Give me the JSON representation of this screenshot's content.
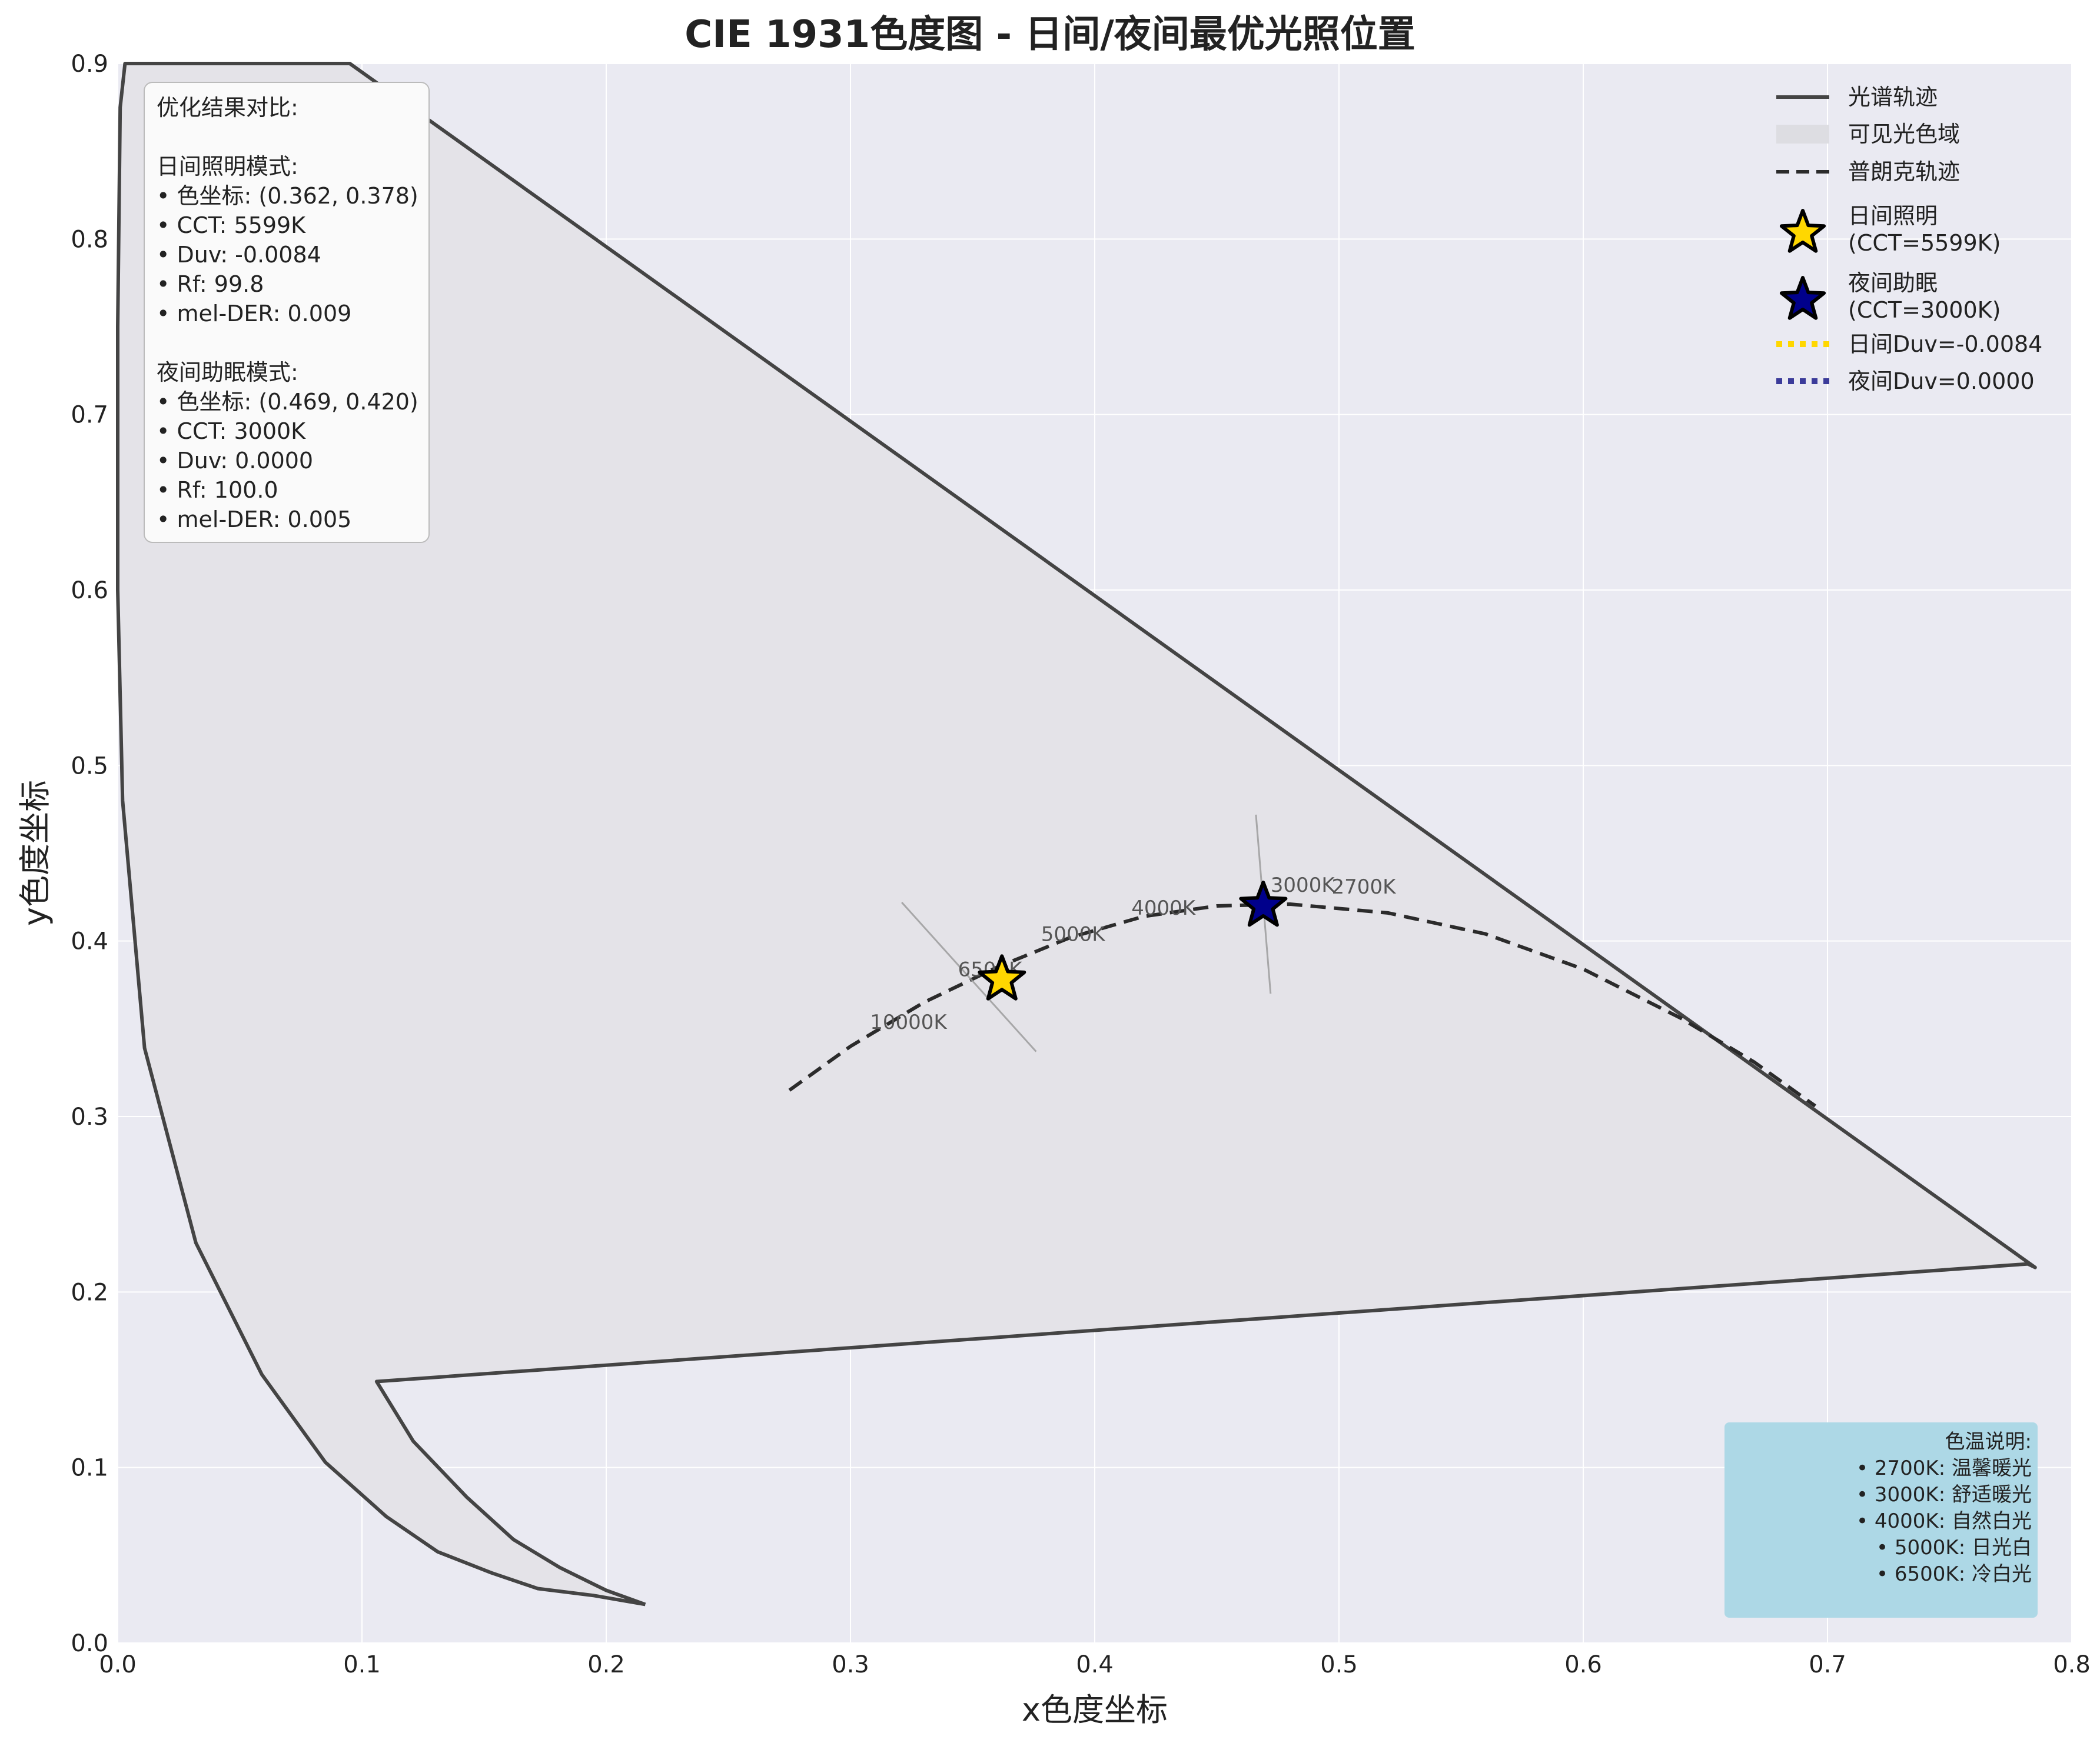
{
  "chart_data": {
    "type": "line",
    "title": "CIE 1931色度图 - 日间/夜间最优光照位置",
    "xlabel": "x色度坐标",
    "ylabel": "y色度坐标",
    "xlim": [
      0.0,
      0.8
    ],
    "ylim": [
      0.0,
      0.9
    ],
    "xticks": [
      "0.0",
      "0.1",
      "0.2",
      "0.3",
      "0.4",
      "0.5",
      "0.6",
      "0.7",
      "0.8"
    ],
    "yticks": [
      "0.0",
      "0.1",
      "0.2",
      "0.3",
      "0.4",
      "0.5",
      "0.6",
      "0.7",
      "0.8",
      "0.9"
    ],
    "grid": true,
    "legend_position": "top-right",
    "spectral_locus": [
      [
        0.216,
        0.022
      ],
      [
        0.195,
        0.027
      ],
      [
        0.172,
        0.031
      ],
      [
        0.153,
        0.04
      ],
      [
        0.131,
        0.052
      ],
      [
        0.11,
        0.072
      ],
      [
        0.085,
        0.103
      ],
      [
        0.059,
        0.153
      ],
      [
        0.032,
        0.228
      ],
      [
        0.011,
        0.339
      ],
      [
        0.002,
        0.48
      ],
      [
        0.0,
        0.6
      ],
      [
        0.0,
        0.75
      ],
      [
        0.001,
        0.875
      ],
      [
        0.003,
        0.9
      ],
      [
        0.095,
        0.9
      ],
      [
        0.785,
        0.214
      ],
      [
        0.782,
        0.216
      ],
      [
        0.106,
        0.149
      ],
      [
        0.121,
        0.115
      ],
      [
        0.143,
        0.083
      ],
      [
        0.162,
        0.059
      ],
      [
        0.181,
        0.043
      ],
      [
        0.2,
        0.03
      ],
      [
        0.216,
        0.022
      ]
    ],
    "planckian_locus": [
      [
        0.275,
        0.315
      ],
      [
        0.3,
        0.34
      ],
      [
        0.33,
        0.365
      ],
      [
        0.36,
        0.385
      ],
      [
        0.39,
        0.402
      ],
      [
        0.42,
        0.414
      ],
      [
        0.45,
        0.42
      ],
      [
        0.48,
        0.421
      ],
      [
        0.52,
        0.416
      ],
      [
        0.56,
        0.404
      ],
      [
        0.6,
        0.384
      ],
      [
        0.64,
        0.356
      ],
      [
        0.67,
        0.331
      ],
      [
        0.695,
        0.306
      ]
    ],
    "cct_markers": [
      {
        "label": "10000K",
        "x": 0.308,
        "y": 0.35
      },
      {
        "label": "6500K",
        "x": 0.344,
        "y": 0.38
      },
      {
        "label": "5000K",
        "x": 0.378,
        "y": 0.4
      },
      {
        "label": "4000K",
        "x": 0.415,
        "y": 0.415
      },
      {
        "label": "3000K",
        "x": 0.472,
        "y": 0.428
      },
      {
        "label": "2700K",
        "x": 0.497,
        "y": 0.427
      }
    ],
    "day_point": {
      "x": 0.362,
      "y": 0.378
    },
    "night_point": {
      "x": 0.469,
      "y": 0.42
    },
    "day_isotemp_line": [
      [
        0.321,
        0.422
      ],
      [
        0.376,
        0.337
      ]
    ],
    "night_isotemp_line": [
      [
        0.466,
        0.472
      ],
      [
        0.472,
        0.37
      ]
    ],
    "colors": {
      "plot_bg": "#eaeaf2",
      "locus": "#444444",
      "gamut_fill": "#e4e3e8",
      "planck": "#2b2b2b",
      "day_star": "#ffd700",
      "night_star": "#00008b",
      "day_duv": "#ffd700",
      "night_duv": "#3b3b9a",
      "note_bg": "#add8e6"
    },
    "legend": [
      {
        "label": "光谱轨迹",
        "style": "solid"
      },
      {
        "label": "可见光色域",
        "style": "patch"
      },
      {
        "label": "普朗克轨迹",
        "style": "dashed"
      },
      {
        "label": "日间照明",
        "label2": "(CCT=5599K)",
        "style": "star-day"
      },
      {
        "label": "夜间助眠",
        "label2": "(CCT=3000K)",
        "style": "star-night"
      },
      {
        "label": "日间Duv=-0.0084",
        "style": "dotted-day"
      },
      {
        "label": "夜间Duv=0.0000",
        "style": "dotted-night"
      }
    ],
    "info_box": [
      "优化结果对比:",
      "",
      "日间照明模式:",
      "• 色坐标: (0.362, 0.378)",
      "• CCT: 5599K",
      "• Duv: -0.0084",
      "• Rf: 99.8",
      "• mel-DER: 0.009",
      "",
      "夜间助眠模式:",
      "• 色坐标: (0.469, 0.420)",
      "• CCT: 3000K",
      "• Duv: 0.0000",
      "• Rf: 100.0",
      "• mel-DER: 0.005"
    ],
    "note_box": [
      "色温说明:",
      "• 2700K: 温馨暖光",
      "• 3000K: 舒适暖光",
      "• 4000K: 自然白光",
      "• 5000K: 日光白",
      "• 6500K: 冷白光"
    ]
  }
}
